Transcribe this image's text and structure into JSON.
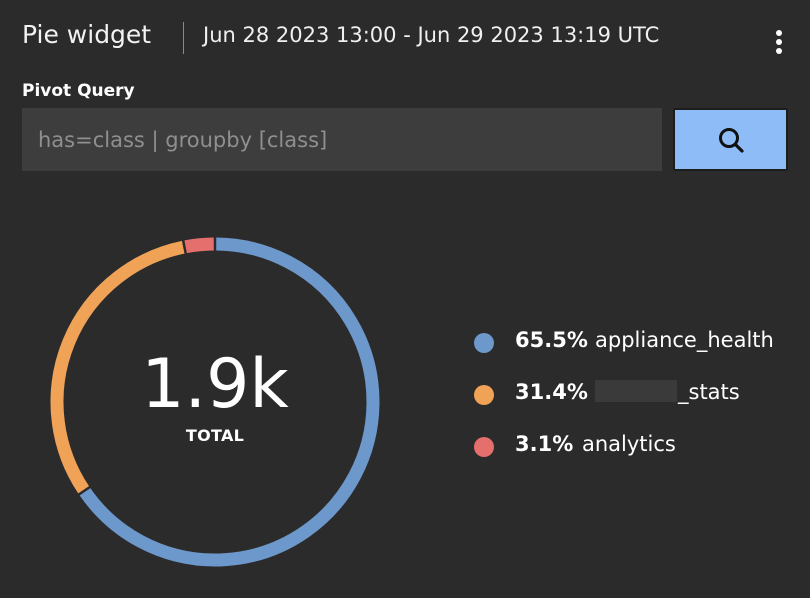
{
  "header": {
    "title": "Pie widget",
    "time_range": "Jun 28 2023 13:00 - Jun 29 2023 13:19 UTC",
    "menu_icon": "more-vertical-icon"
  },
  "query": {
    "label": "Pivot Query",
    "value": "",
    "placeholder": "has=class | groupby [class]",
    "search_icon": "search-icon"
  },
  "colors": {
    "background": "#2b2b2b",
    "input_background": "#3d3d3d",
    "search_button": "#8ebcf6"
  },
  "chart_data": {
    "type": "pie",
    "style": "donut",
    "total_value": "1.9k",
    "total_label": "TOTAL",
    "slices": [
      {
        "label": "appliance_health",
        "percent": 65.5,
        "percent_label": "65.5%",
        "color": "#6d98cc"
      },
      {
        "label": "_stats",
        "percent": 31.4,
        "percent_label": "31.4%",
        "color": "#f0a257",
        "label_partially_redacted": true
      },
      {
        "label": "analytics",
        "percent": 3.1,
        "percent_label": "3.1%",
        "color": "#e56f6c"
      }
    ],
    "legend_position": "right"
  }
}
